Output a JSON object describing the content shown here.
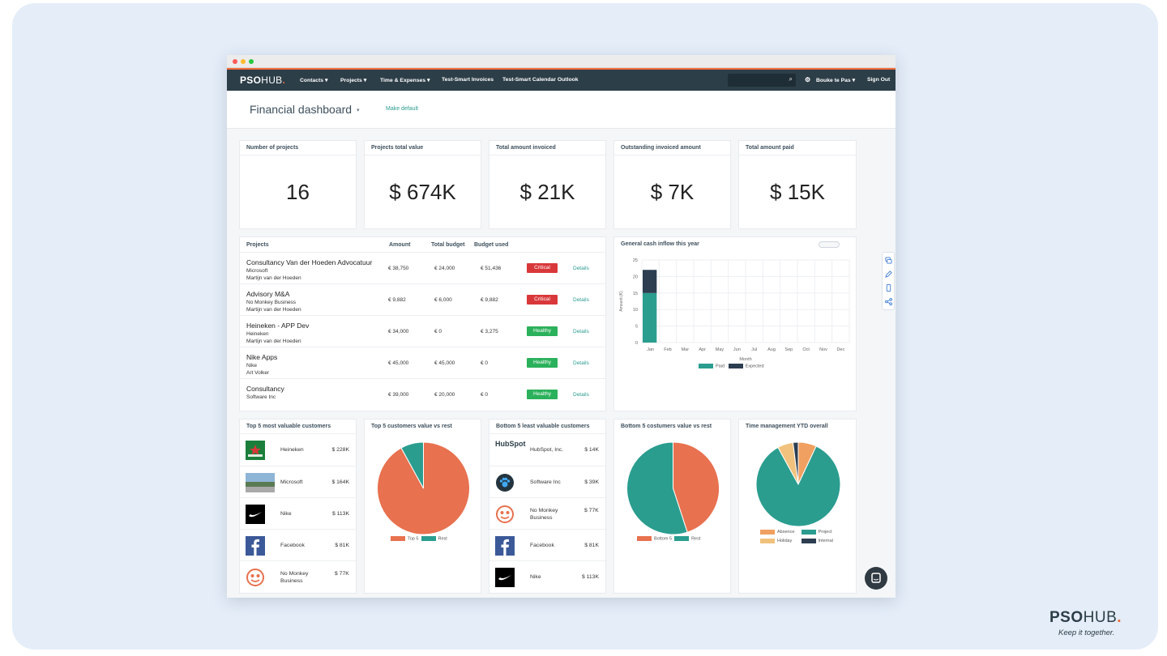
{
  "colors": {
    "accent": "#2a9d8f",
    "orange": "#e8714f",
    "navy": "#2c3e48",
    "critical": "#d9383a",
    "healthy": "#2bb15b",
    "dark_bar": "#2c3e50",
    "absence": "#f0a060",
    "holiday": "#f1c27d"
  },
  "nav": {
    "logo_a": "PSO",
    "logo_b": "HUB",
    "logo_dot": ".",
    "items": [
      "Contacts ▾",
      "Projects ▾",
      "Time & Expenses ▾",
      "Test-Smart Invoices",
      "Test-Smart Calendar Outlook"
    ],
    "search_icon": "search-icon",
    "user": "Bouke te Pas ▾",
    "signout": "Sign Out"
  },
  "page": {
    "title": "Financial dashboard",
    "caret": "▾",
    "make_default": "Make default"
  },
  "kpis": [
    {
      "title": "Number of projects",
      "value": "16"
    },
    {
      "title": "Projects total value",
      "value": "$ 674K"
    },
    {
      "title": "Total amount invoiced",
      "value": "$ 21K"
    },
    {
      "title": "Outstanding invoiced amount",
      "value": "$ 7K"
    },
    {
      "title": "Total amount paid",
      "value": "$ 15K"
    }
  ],
  "projects": {
    "headers": {
      "project": "Projects",
      "amount": "Amount",
      "budget": "Total budget",
      "used": "Budget used"
    },
    "rows": [
      {
        "name": "Consultancy Van der Hoeden Advocatuur",
        "client": "Microsoft",
        "person": "Martijn van der Hoeden",
        "amount": "€ 38,750",
        "budget": "€ 24,000",
        "used": "€ 51,436",
        "status": "Critical",
        "details": "Details"
      },
      {
        "name": "Advisory M&A",
        "client": "No Monkey Business",
        "person": "Martijn van der Hoeden",
        "amount": "€ 9,882",
        "budget": "€ 6,000",
        "used": "€ 9,882",
        "status": "Critical",
        "details": "Details"
      },
      {
        "name": "Heineken - APP Dev",
        "client": "Heineken",
        "person": "Martijn van der Hoeden",
        "amount": "€ 34,000",
        "budget": "€ 0",
        "used": "€ 3,275",
        "status": "Healthy",
        "details": "Details"
      },
      {
        "name": "Nike Apps",
        "client": "Nike",
        "person": "Art Volker",
        "amount": "€ 45,000",
        "budget": "€ 45,000",
        "used": "€ 0",
        "status": "Healthy",
        "details": "Details"
      },
      {
        "name": "Consultancy",
        "client": "Software Inc",
        "person": "",
        "amount": "€ 39,000",
        "budget": "€ 20,000",
        "used": "€ 0",
        "status": "Healthy",
        "details": "Details"
      }
    ]
  },
  "top5": {
    "title": "Top 5 most valuable customers",
    "rows": [
      {
        "name": "Heineken",
        "value": "$ 228K",
        "logo": "heineken-logo"
      },
      {
        "name": "Microsoft",
        "value": "$ 164K",
        "logo": "microsoft-photo"
      },
      {
        "name": "Nike",
        "value": "$ 113K",
        "logo": "nike-logo"
      },
      {
        "name": "Facebook",
        "value": "$ 81K",
        "logo": "facebook-logo"
      },
      {
        "name": "No Monkey Business",
        "value": "$ 77K",
        "logo": "monkey-logo"
      }
    ]
  },
  "bottom5": {
    "title": "Bottom 5 least valuable customers",
    "rows": [
      {
        "name": "HubSpot, Inc.",
        "value": "$ 14K",
        "logo": "hubspot-logo",
        "logo_text": "HubSpot"
      },
      {
        "name": "Software Inc",
        "value": "$ 39K",
        "logo": "paw-logo"
      },
      {
        "name": "No Monkey Business",
        "value": "$ 77K",
        "logo": "monkey-logo"
      },
      {
        "name": "Facebook",
        "value": "$ 81K",
        "logo": "facebook-logo"
      },
      {
        "name": "Nike",
        "value": "$ 113K",
        "logo": "nike-logo"
      }
    ]
  },
  "chart_data": [
    {
      "type": "bar",
      "title": "General cash inflow this year",
      "categories": [
        "Jan",
        "Feb",
        "Mar",
        "Apr",
        "May",
        "Jun",
        "Jul",
        "Aug",
        "Sep",
        "Oct",
        "Nov",
        "Dec"
      ],
      "series": [
        {
          "name": "Paid",
          "values": [
            15,
            0,
            0,
            0,
            0,
            0,
            0,
            0,
            0,
            0,
            0,
            0
          ]
        },
        {
          "name": "Expected",
          "values": [
            7,
            0,
            0,
            0,
            0,
            0,
            0,
            0,
            0,
            0,
            0,
            0
          ]
        }
      ],
      "stacked": true,
      "xlabel": "Month",
      "ylabel": "Amount (K)",
      "ylim": [
        0,
        25
      ],
      "yticks": [
        "0",
        "5",
        "10",
        "15",
        "20",
        "25"
      ],
      "grid": true,
      "legend": "bottom"
    },
    {
      "type": "pie",
      "title": "Top 5 customers value vs rest",
      "labels": [
        "Top 5",
        "Rest"
      ],
      "values": [
        92,
        8
      ],
      "legend": "bottom"
    },
    {
      "type": "pie",
      "title": "Bottom 5 costumers value vs rest",
      "labels": [
        "Bottom 5",
        "Rest"
      ],
      "values": [
        45,
        55
      ],
      "legend": "bottom"
    },
    {
      "type": "pie",
      "title": "Time management YTD overall",
      "labels": [
        "Absence",
        "Project",
        "Holiday",
        "Internal"
      ],
      "values": [
        7,
        85,
        6,
        2
      ],
      "legend": "bottom"
    }
  ],
  "branding": {
    "name_a": "PSO",
    "name_b": "HUB",
    "dot": ".",
    "tagline": "Keep it together."
  }
}
